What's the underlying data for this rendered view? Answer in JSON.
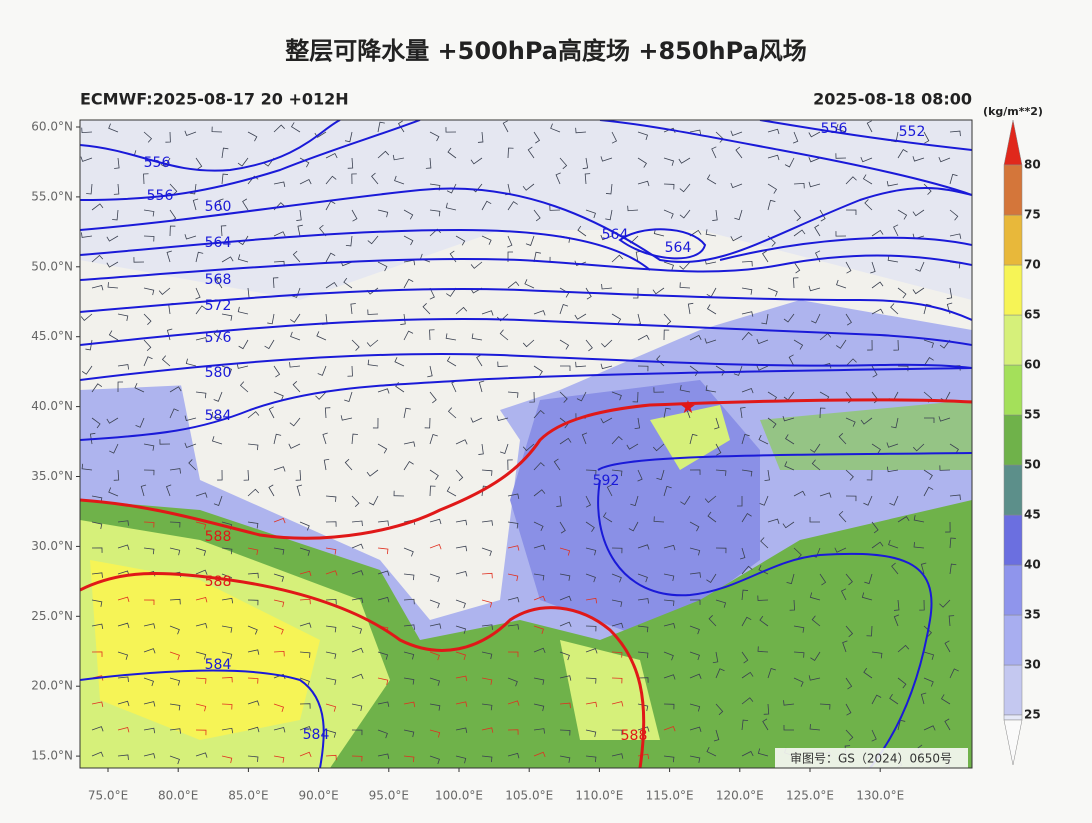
{
  "header": {
    "title": "整层可降水量 +500hPa高度场 +850hPa风场",
    "left_subtitle": "ECMWF:2025-08-17 20 +012H",
    "right_subtitle": "2025-08-18 08:00"
  },
  "map": {
    "lat_labels": [
      "60.0°N",
      "55.0°N",
      "50.0°N",
      "45.0°N",
      "40.0°N",
      "35.0°N",
      "30.0°N",
      "25.0°N",
      "20.0°N",
      "15.0°N"
    ],
    "lon_labels": [
      "75.0°E",
      "80.0°E",
      "85.0°E",
      "90.0°E",
      "95.0°E",
      "100.0°E",
      "105.0°E",
      "110.0°E",
      "115.0°E",
      "120.0°E",
      "125.0°E",
      "130.0°E"
    ],
    "contour_labels": [
      {
        "value": 556,
        "color": "#1a1ad8"
      },
      {
        "value": 556,
        "color": "#1a1ad8"
      },
      {
        "value": 560,
        "color": "#1a1ad8"
      },
      {
        "value": 564,
        "color": "#1a1ad8"
      },
      {
        "value": 568,
        "color": "#1a1ad8"
      },
      {
        "value": 572,
        "color": "#1a1ad8"
      },
      {
        "value": 576,
        "color": "#1a1ad8"
      },
      {
        "value": 580,
        "color": "#1a1ad8"
      },
      {
        "value": 584,
        "color": "#1a1ad8"
      },
      {
        "value": 592,
        "color": "#1a1ad8"
      },
      {
        "value": 564,
        "color": "#1a1ad8"
      },
      {
        "value": 564,
        "color": "#1a1ad8"
      },
      {
        "value": 556,
        "color": "#1a1ad8"
      },
      {
        "value": 552,
        "color": "#1a1ad8"
      },
      {
        "value": 584,
        "color": "#1a1ad8"
      },
      {
        "value": 584,
        "color": "#1a1ad8"
      },
      {
        "value": 588,
        "color": "#e01818"
      },
      {
        "value": 588,
        "color": "#e01818"
      },
      {
        "value": 588,
        "color": "#e01818"
      }
    ],
    "approval": "审图号：GS（2024）0650号"
  },
  "colorbar": {
    "unit": "(kg/m**2)",
    "labels": [
      25,
      30,
      35,
      40,
      45,
      50,
      55,
      60,
      65,
      70,
      75,
      80
    ],
    "colors": [
      "#c4c8f0",
      "#a8aef0",
      "#8f95ec",
      "#6b6fe0",
      "#5c8f8a",
      "#6fb24a",
      "#a4e05a",
      "#d6f07a",
      "#f6f456",
      "#e8b83a",
      "#d4763a"
    ],
    "under_color": "#e6e9f8",
    "over_color": "#e0281c"
  }
}
